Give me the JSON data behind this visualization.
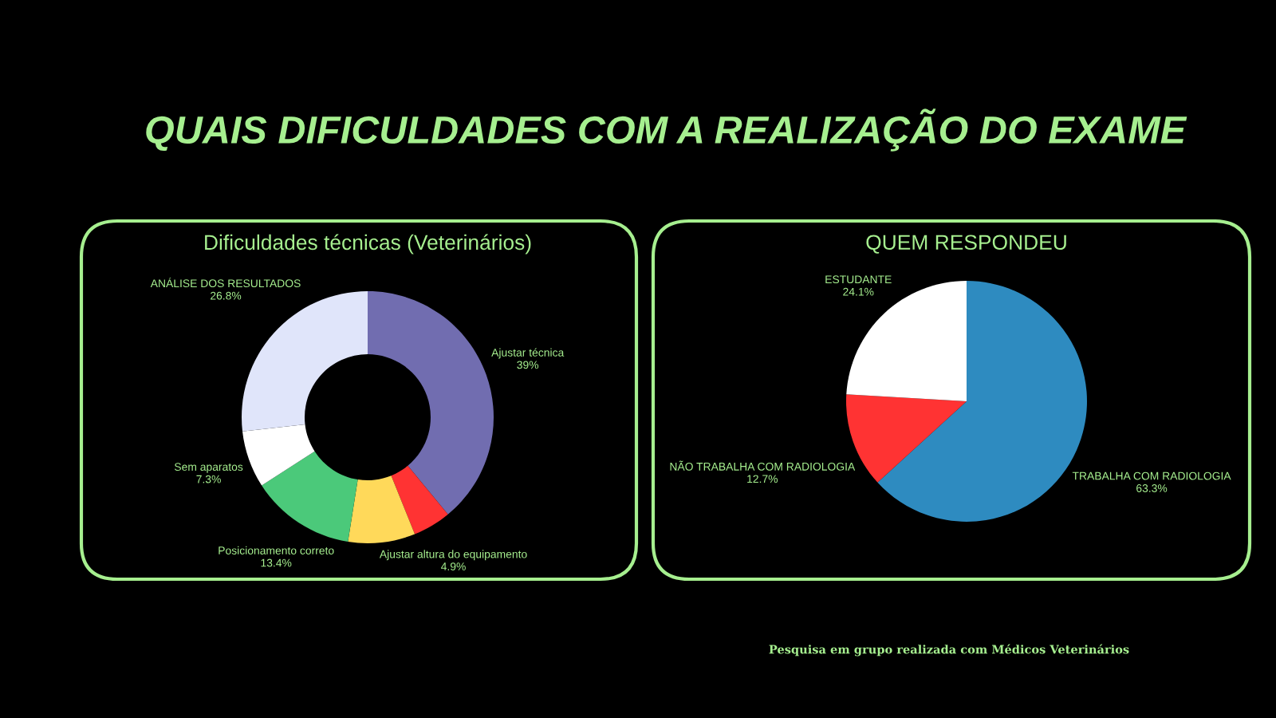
{
  "chart_data": [
    {
      "type": "donut",
      "title": "QUAIS DIFICULDADES COM A REALIZAÇÃO DO EXAME",
      "subtitle": "Dificuldades técnicas (Veterinários)",
      "categories": [
        "Ajustar técnica",
        "Ajustar altura do equipamento",
        null,
        "Posicionamento correto",
        "Sem aparatos",
        "ANÁLISE DOS RESULTADOS"
      ],
      "values": [
        39,
        4.9,
        8.6,
        13.4,
        7.3,
        26.8
      ],
      "colors": [
        "#716db0",
        "#ff3333",
        "#ffd95a",
        "#4bc97a",
        "#ffffff",
        "#e0e5fa"
      ],
      "value_labels": [
        "39%",
        "4.9%",
        null,
        "13.4%",
        "7.3%",
        "26.8%"
      ]
    },
    {
      "type": "pie",
      "title": "QUEM RESPONDEU",
      "categories": [
        "TRABALHA COM RADIOLOGIA",
        "NÃO TRABALHA COM RADIOLOGIA",
        "ESTUDANTE"
      ],
      "values": [
        63.3,
        12.7,
        24.1
      ],
      "colors": [
        "#2e8bc0",
        "#ff3333",
        "#ffffff"
      ],
      "value_labels": [
        "63.3%",
        "12.7%",
        "24.1%"
      ],
      "annotations": [
        "Pesquisa em grupo realizada com Médicos Veterinários"
      ]
    }
  ]
}
